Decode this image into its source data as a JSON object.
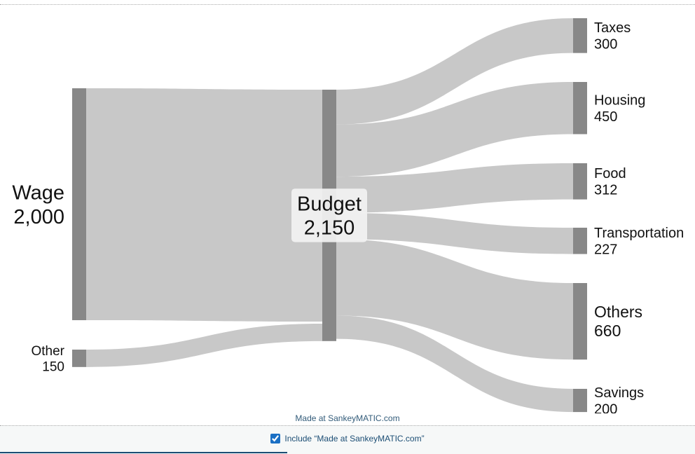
{
  "diagram": {
    "type": "sankey",
    "unit": "",
    "nodes": [
      {
        "id": "wage",
        "label": "Wage",
        "value": "2,000",
        "column": 0,
        "amount": 2000
      },
      {
        "id": "other",
        "label": "Other",
        "value": "150",
        "column": 0,
        "amount": 150
      },
      {
        "id": "budget",
        "label": "Budget",
        "value": "2,150",
        "column": 1,
        "amount": 2150
      },
      {
        "id": "taxes",
        "label": "Taxes",
        "value": "300",
        "column": 2,
        "amount": 300
      },
      {
        "id": "housing",
        "label": "Housing",
        "value": "450",
        "column": 2,
        "amount": 450
      },
      {
        "id": "food",
        "label": "Food",
        "value": "312",
        "column": 2,
        "amount": 312
      },
      {
        "id": "transportation",
        "label": "Transportation",
        "value": "227",
        "column": 2,
        "amount": 227
      },
      {
        "id": "others",
        "label": "Others",
        "value": "660",
        "column": 2,
        "amount": 660
      },
      {
        "id": "savings",
        "label": "Savings",
        "value": "200",
        "column": 2,
        "amount": 200
      }
    ],
    "links": [
      {
        "source": "wage",
        "target": "budget",
        "value": 2000
      },
      {
        "source": "other",
        "target": "budget",
        "value": 150
      },
      {
        "source": "budget",
        "target": "taxes",
        "value": 300
      },
      {
        "source": "budget",
        "target": "housing",
        "value": 450
      },
      {
        "source": "budget",
        "target": "food",
        "value": 312
      },
      {
        "source": "budget",
        "target": "transportation",
        "value": 227
      },
      {
        "source": "budget",
        "target": "others",
        "value": 660
      },
      {
        "source": "budget",
        "target": "savings",
        "value": 200
      }
    ],
    "colors": {
      "node": "#888888",
      "link": "#c8c8c8",
      "label_box": "#f2f2f2"
    }
  },
  "credit": {
    "text": "Made at SankeyMATIC.com",
    "checkbox_label": "Include “Made at SankeyMATIC.com”",
    "checked": true
  }
}
